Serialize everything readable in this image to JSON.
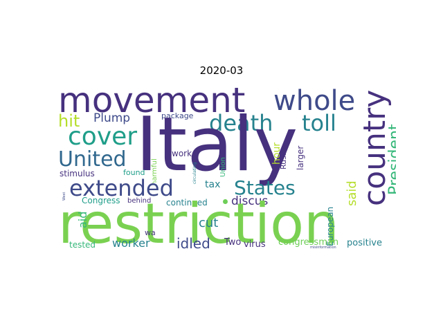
{
  "title": "2020-03",
  "words": {
    "italy": "Italy",
    "restriction": "restriction",
    "movement": "movement",
    "whole": "whole",
    "country": "country",
    "cover": "cover",
    "death": "death",
    "toll": "toll",
    "united": "United",
    "extended": "extended",
    "states": "States",
    "president": "President",
    "hit": "hit",
    "plump": "Plump",
    "package": "package",
    "work": "work",
    "harmful": "harmful",
    "circulating": "circulating",
    "union": "Union",
    "russia": "Russia",
    "larger": "larger",
    "hour": "hour",
    "said": "said",
    "stimulus": "stimulus",
    "found": "found",
    "tax": "tax",
    "west": "West",
    "congress": "Congress",
    "behind": "behind",
    "continued": "continued",
    "discus": "discus",
    "aid": "aid",
    "cut": "cut",
    "european": "European",
    "wa": "wa",
    "tested": "tested",
    "worker": "worker",
    "idled": "idled",
    "two": "Two",
    "virus": "virus",
    "congressman": "congressman",
    "positive": "positive",
    "misinformation": "misinformation"
  },
  "colors": {
    "dark_purple": "#46317e",
    "indigo": "#3e4a89",
    "teal_blue": "#31688e",
    "teal": "#26828e",
    "green_teal": "#1f9e89",
    "mint": "#35b779",
    "green": "#6ece58",
    "lime": "#7ad151",
    "yellow_green": "#b5de2b",
    "purple": "#482878"
  }
}
